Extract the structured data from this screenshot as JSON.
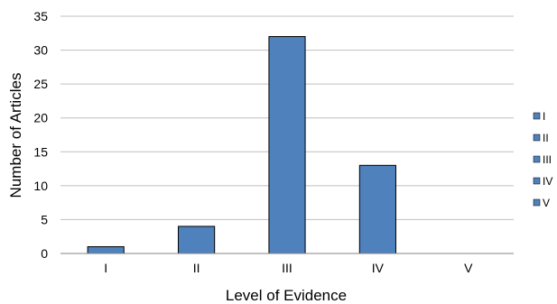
{
  "chart_data": {
    "type": "bar",
    "title": "",
    "xlabel": "Level of Evidence",
    "ylabel": "Number of Articles",
    "categories": [
      "I",
      "II",
      "III",
      "IV",
      "V"
    ],
    "values": [
      1,
      4,
      32,
      13,
      0
    ],
    "ylim": [
      0,
      35
    ],
    "yticks": [
      "0",
      "5",
      "10",
      "15",
      "20",
      "25",
      "30",
      "35"
    ],
    "grid": true,
    "legend_position": "right",
    "legend_entries": [
      "I",
      "II",
      "III",
      "IV",
      "V"
    ],
    "colors": {
      "bar": "#4F81BD",
      "bar_edge": "#000000",
      "gridline": "#BFBFBF",
      "axis": "#868686"
    }
  }
}
